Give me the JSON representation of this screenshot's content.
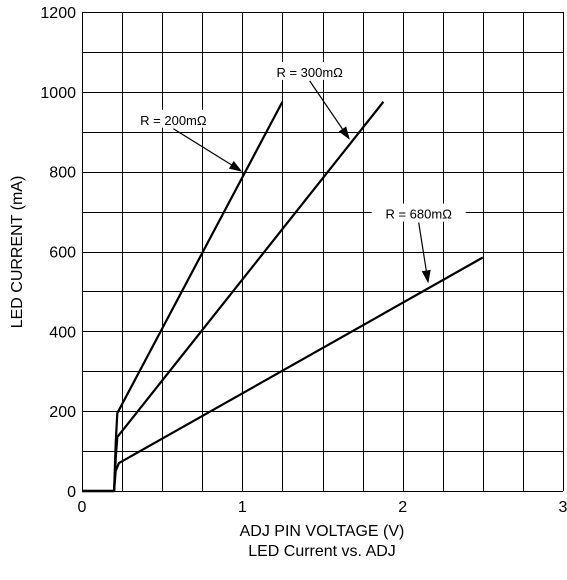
{
  "chart_data": {
    "type": "line",
    "title": "",
    "caption": "LED Current vs. ADJ",
    "xlabel": "ADJ PIN VOLTAGE (V)",
    "ylabel": "LED CURRENT (mA)",
    "xlim": [
      0,
      3
    ],
    "ylim": [
      0,
      1200
    ],
    "x_ticks": [
      0,
      1,
      2,
      3
    ],
    "x_tick_labels": [
      "0",
      "1",
      "2",
      "3"
    ],
    "y_ticks": [
      0,
      200,
      400,
      600,
      800,
      1000,
      1200
    ],
    "y_tick_labels": [
      "0",
      "200",
      "400",
      "600",
      "800",
      "1000",
      "1200"
    ],
    "x_minor_step": 0.25,
    "y_minor_step": 100,
    "grid": true,
    "series": [
      {
        "x": [
          0,
          0.2,
          0.21,
          0.22,
          1.25
        ],
        "y": [
          0,
          0,
          120,
          195,
          975
        ]
      },
      {
        "x": [
          0,
          0.2,
          0.21,
          0.22,
          1.88
        ],
        "y": [
          0,
          0,
          80,
          135,
          975
        ]
      },
      {
        "x": [
          0,
          0.2,
          0.21,
          0.23,
          2.5
        ],
        "y": [
          0,
          0,
          50,
          70,
          585
        ]
      }
    ],
    "annotations": [
      {
        "text": "R = 200mΩ",
        "label_x": 0.57,
        "label_y": 930,
        "arrow_to_x": 1.0,
        "arrow_to_y": 800
      },
      {
        "text": "R = 300mΩ",
        "label_x": 1.42,
        "label_y": 1050,
        "arrow_to_x": 1.67,
        "arrow_to_y": 880
      },
      {
        "text": "R = 680mΩ",
        "label_x": 2.1,
        "label_y": 695,
        "arrow_to_x": 2.16,
        "arrow_to_y": 520
      }
    ]
  }
}
